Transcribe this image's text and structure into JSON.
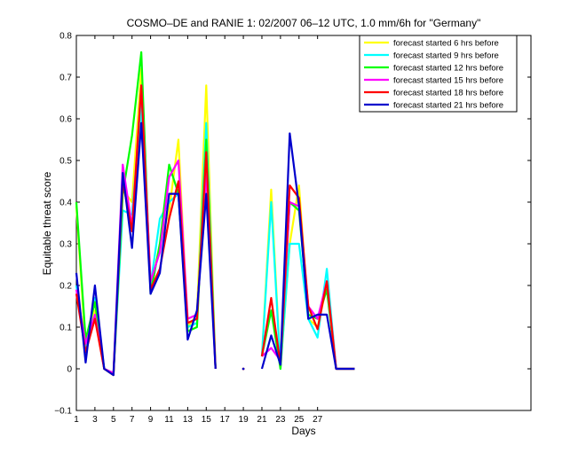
{
  "chart_data": {
    "type": "line",
    "title": "COSMO–DE and RANIE 1: 02/2007 06–12 UTC, 1.0 mm/6h for \"Germany\"",
    "xlabel": "Days",
    "ylabel": "Equitable threat score",
    "xlim": [
      1,
      50
    ],
    "ylim": [
      -0.1,
      0.8
    ],
    "xticks": [
      1,
      3,
      5,
      7,
      9,
      11,
      13,
      15,
      17,
      19,
      21,
      23,
      25,
      27
    ],
    "xtick_labels": [
      "1",
      "3",
      "5",
      "7",
      "9",
      "11",
      "13",
      "15",
      "17",
      "19",
      "21",
      "23",
      "25",
      "27"
    ],
    "yticks": [
      -0.1,
      0,
      0.1,
      0.2,
      0.3,
      0.4,
      0.5,
      0.6,
      0.7,
      0.8
    ],
    "ytick_labels": [
      "−0.1",
      "0",
      "0.1",
      "0.2",
      "0.3",
      "0.4",
      "0.5",
      "0.6",
      "0.7",
      "0.8"
    ],
    "grid": false,
    "legend_position": "top-right",
    "x": [
      1,
      2,
      3,
      4,
      5,
      6,
      7,
      8,
      9,
      10,
      11,
      12,
      13,
      14,
      15,
      16,
      17,
      18,
      19,
      20,
      21,
      22,
      23,
      24,
      25,
      26,
      27,
      28,
      29,
      30,
      31
    ],
    "series": [
      {
        "name": "forecast started 6 hrs before",
        "color": "#ffff00",
        "values": [
          0.39,
          0.05,
          0.14,
          0.0,
          -0.01,
          0.43,
          0.4,
          0.72,
          0.19,
          0.3,
          0.38,
          0.55,
          0.1,
          0.13,
          0.68,
          0.0,
          null,
          null,
          0.0,
          null,
          0.03,
          0.43,
          0.0,
          0.3,
          0.44,
          0.12,
          0.1,
          0.2,
          0.0,
          0.0,
          0.0
        ]
      },
      {
        "name": "forecast started 9 hrs before",
        "color": "#00ffff",
        "values": [
          0.2,
          0.05,
          0.17,
          0.0,
          -0.01,
          0.38,
          0.37,
          0.63,
          0.2,
          0.36,
          0.4,
          0.42,
          0.1,
          0.11,
          0.59,
          0.0,
          null,
          null,
          0.0,
          null,
          0.03,
          0.4,
          0.0,
          0.3,
          0.3,
          0.12,
          0.075,
          0.24,
          0.0,
          0.0,
          0.0
        ]
      },
      {
        "name": "forecast started 12 hrs before",
        "color": "#00ff00",
        "values": [
          0.4,
          0.07,
          0.16,
          0.0,
          -0.015,
          0.42,
          0.56,
          0.76,
          0.18,
          0.3,
          0.49,
          0.42,
          0.09,
          0.1,
          0.55,
          0.0,
          null,
          null,
          0.0,
          null,
          0.03,
          0.14,
          0.0,
          0.4,
          0.38,
          0.13,
          0.12,
          0.19,
          0.0,
          0.0,
          0.0
        ]
      },
      {
        "name": "forecast started 15 hrs before",
        "color": "#ff00ff",
        "values": [
          0.19,
          0.06,
          0.13,
          0.0,
          -0.01,
          0.49,
          0.34,
          0.68,
          0.21,
          0.28,
          0.46,
          0.5,
          0.12,
          0.13,
          0.47,
          0.0,
          null,
          null,
          0.0,
          null,
          0.03,
          0.05,
          0.02,
          0.4,
          0.39,
          0.15,
          0.12,
          0.21,
          0.0,
          0.0,
          0.0
        ]
      },
      {
        "name": "forecast started 18 hrs before",
        "color": "#ff0000",
        "values": [
          0.18,
          0.04,
          0.12,
          0.0,
          -0.015,
          0.45,
          0.33,
          0.68,
          0.19,
          0.24,
          0.36,
          0.45,
          0.11,
          0.12,
          0.52,
          0.0,
          null,
          null,
          0.0,
          null,
          0.03,
          0.17,
          0.01,
          0.44,
          0.41,
          0.15,
          0.095,
          0.21,
          0.0,
          0.0,
          0.0
        ]
      },
      {
        "name": "forecast started 21 hrs before",
        "color": "#0000cc",
        "values": [
          0.23,
          0.015,
          0.2,
          0.0,
          -0.015,
          0.47,
          0.29,
          0.59,
          0.18,
          0.23,
          0.42,
          0.42,
          0.07,
          0.14,
          0.42,
          0.0,
          null,
          null,
          0.0,
          null,
          0.0,
          0.08,
          0.01,
          0.565,
          0.39,
          0.12,
          0.13,
          0.13,
          0.0,
          0.0,
          0.0
        ]
      }
    ]
  }
}
